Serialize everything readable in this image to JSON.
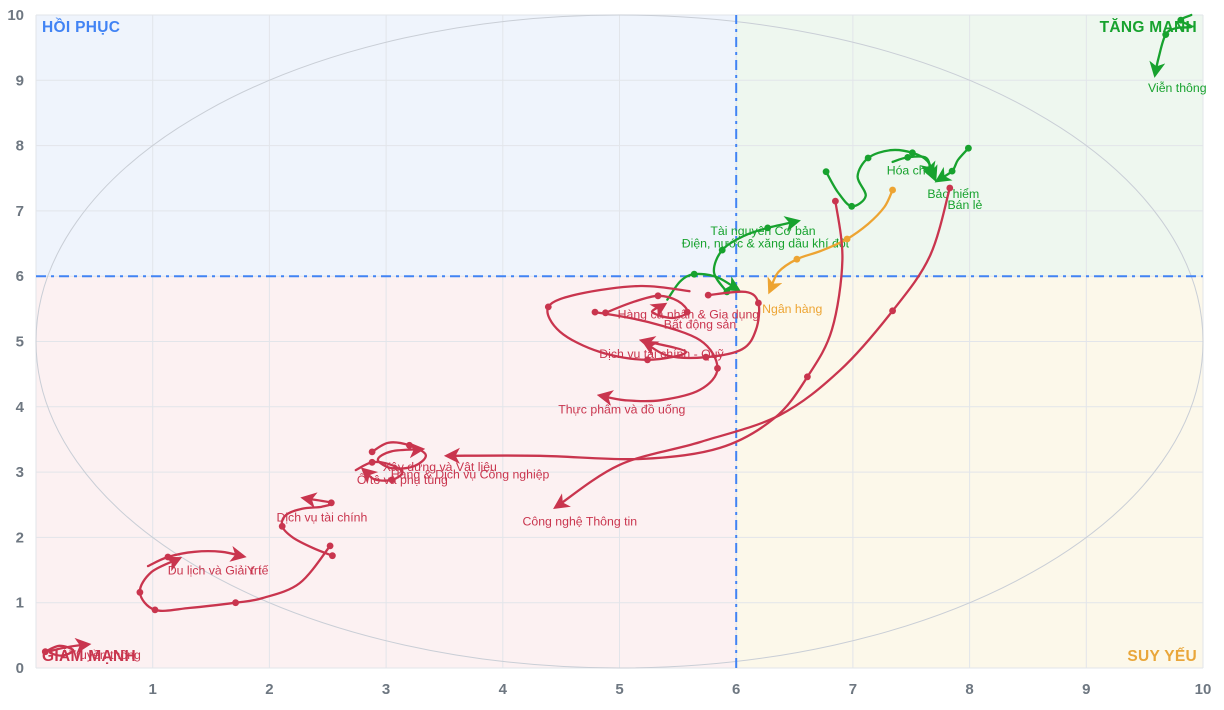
{
  "page": {
    "background": "#ffffff"
  },
  "colors": {
    "grid": "#e2e5ea",
    "axis_text": "#6e7781",
    "ellipse": "#c9ced6",
    "crosshair_blue": "#4183f4",
    "green": "#17a22e",
    "red": "#c9354e",
    "orange": "#eda432",
    "blue": "#4183f4"
  },
  "chart_data": {
    "type": "scatter",
    "subtype": "relative-rotation-graph",
    "title": "",
    "xlabel": "",
    "ylabel": "",
    "xlim": [
      0,
      10
    ],
    "ylim": [
      0,
      10
    ],
    "x_ticks": [
      1,
      2,
      3,
      4,
      5,
      6,
      7,
      8,
      9,
      10
    ],
    "y_ticks": [
      0,
      1,
      2,
      3,
      4,
      5,
      6,
      7,
      8,
      9,
      10
    ],
    "grid": true,
    "crosshair": {
      "x": 6,
      "y": 6,
      "color": "#4183f4"
    },
    "boundary_circle": {
      "cx": 5,
      "cy": 5,
      "r": 5,
      "color": "#c9ced6"
    },
    "quadrants": {
      "top_left": {
        "label": "HỒI PHỤC",
        "text_color": "#4183f4",
        "bg": "#eff4fc"
      },
      "top_right": {
        "label": "TĂNG MẠNH",
        "text_color": "#17a22e",
        "bg": "#eef7ef"
      },
      "bottom_left": {
        "label": "GIẢM MẠNH",
        "text_color": "#c9354e",
        "bg": "#fcf1f2"
      },
      "bottom_right": {
        "label": "SUY YẾU",
        "text_color": "#e9a63a",
        "bg": "#fcf8ea"
      }
    },
    "series": [
      {
        "name": "Viễn thông",
        "color": "#17a22e",
        "points": [
          [
            9.9,
            10.0
          ],
          [
            9.81,
            9.92
          ],
          [
            9.9,
            9.82
          ],
          [
            9.77,
            9.8
          ],
          [
            9.68,
            9.7
          ],
          [
            9.62,
            9.35
          ],
          [
            9.59,
            9.1
          ]
        ],
        "dots": [
          1,
          4
        ],
        "label_pos": [
          9.78,
          8.82
        ]
      },
      {
        "name": "Hóa chất",
        "color": "#17a22e",
        "points": [
          [
            6.77,
            7.6
          ],
          [
            6.87,
            7.29
          ],
          [
            6.99,
            7.07
          ],
          [
            7.11,
            7.23
          ],
          [
            7.04,
            7.53
          ],
          [
            7.13,
            7.81
          ],
          [
            7.32,
            7.93
          ],
          [
            7.51,
            7.89
          ],
          [
            7.64,
            7.76
          ],
          [
            7.7,
            7.5
          ]
        ],
        "dots": [
          0,
          2,
          5,
          7
        ],
        "label_pos": [
          7.5,
          7.56
        ]
      },
      {
        "name": "Bảo hiểm",
        "color": "#17a22e",
        "points": [
          [
            7.99,
            7.96
          ],
          [
            7.9,
            7.78
          ],
          [
            7.85,
            7.61
          ],
          [
            7.73,
            7.47
          ]
        ],
        "dots": [
          0,
          2
        ],
        "label_pos": [
          7.86,
          7.2
        ]
      },
      {
        "name": "Bán lẻ",
        "color": "#17a22e",
        "points": [
          [
            7.34,
            7.75
          ],
          [
            7.47,
            7.82
          ],
          [
            7.63,
            7.81
          ],
          [
            7.67,
            7.56
          ]
        ],
        "dots": [
          1
        ],
        "label_pos": [
          7.96,
          7.03
        ]
      },
      {
        "name": "Tài nguyên Cơ bản",
        "color": "#17a22e",
        "points": [
          [
            5.92,
            5.76
          ],
          [
            5.81,
            6.06
          ],
          [
            5.88,
            6.4
          ],
          [
            6.07,
            6.62
          ],
          [
            6.27,
            6.74
          ],
          [
            6.52,
            6.84
          ]
        ],
        "dots": [
          0,
          2,
          4
        ],
        "label_pos": [
          6.23,
          6.63
        ]
      },
      {
        "name": "Điện, nước & xăng dầu khí đốt",
        "color": "#17a22e",
        "points": [
          [
            5.41,
            5.64
          ],
          [
            5.52,
            5.92
          ],
          [
            5.64,
            6.03
          ],
          [
            5.83,
            5.99
          ],
          [
            6.01,
            5.8
          ]
        ],
        "dots": [
          2
        ],
        "label_pos": [
          6.25,
          6.44
        ]
      },
      {
        "name": "Ngân hàng",
        "color": "#eda432",
        "points": [
          [
            7.34,
            7.32
          ],
          [
            7.27,
            7.06
          ],
          [
            7.13,
            6.8
          ],
          [
            6.95,
            6.57
          ],
          [
            6.73,
            6.39
          ],
          [
            6.52,
            6.26
          ],
          [
            6.36,
            6.06
          ],
          [
            6.29,
            5.78
          ]
        ],
        "dots": [
          0,
          3,
          5
        ],
        "label_pos": [
          6.48,
          5.44
        ]
      },
      {
        "name": "Hàng cá nhân & Gia dụng",
        "color": "#c9354e",
        "points": [
          [
            4.88,
            5.44
          ],
          [
            5.11,
            5.6
          ],
          [
            5.33,
            5.7
          ],
          [
            5.5,
            5.62
          ],
          [
            5.58,
            5.45
          ],
          [
            5.45,
            5.36
          ],
          [
            5.28,
            5.45
          ],
          [
            5.38,
            5.56
          ]
        ],
        "dots": [
          0,
          2,
          4
        ],
        "label_pos": [
          5.59,
          5.35
        ]
      },
      {
        "name": "Bất động sản",
        "color": "#c9354e",
        "points": [
          [
            5.76,
            5.71
          ],
          [
            6.08,
            5.76
          ],
          [
            6.19,
            5.59
          ],
          [
            6.17,
            5.18
          ],
          [
            6.05,
            4.88
          ],
          [
            5.74,
            4.76
          ],
          [
            5.42,
            4.78
          ],
          [
            5.22,
            4.98
          ]
        ],
        "dots": [
          0,
          2,
          5
        ],
        "label_pos": [
          5.69,
          5.2
        ]
      },
      {
        "name": "Dịch vụ tài chính - Quỹ",
        "color": "#c9354e",
        "points": [
          [
            5.6,
            5.77
          ],
          [
            5.18,
            5.85
          ],
          [
            4.66,
            5.73
          ],
          [
            4.39,
            5.53
          ],
          [
            4.49,
            5.15
          ],
          [
            4.83,
            4.84
          ],
          [
            5.24,
            4.72
          ],
          [
            5.57,
            4.84
          ],
          [
            5.2,
            5.01
          ]
        ],
        "dots": [
          3,
          6
        ],
        "label_pos": [
          5.36,
          4.75
        ]
      },
      {
        "name": "Thực phẩm và đồ uống",
        "color": "#c9354e",
        "points": [
          [
            4.79,
            5.45
          ],
          [
            5.24,
            5.3
          ],
          [
            5.69,
            5.02
          ],
          [
            5.84,
            4.59
          ],
          [
            5.69,
            4.26
          ],
          [
            5.35,
            4.1
          ],
          [
            5.05,
            4.1
          ],
          [
            4.84,
            4.17
          ]
        ],
        "dots": [
          0,
          3
        ],
        "label_pos": [
          5.02,
          3.9
        ]
      },
      {
        "name": "Công nghệ Thông tin",
        "color": "#c9354e",
        "points": [
          [
            7.83,
            7.35
          ],
          [
            7.66,
            6.31
          ],
          [
            7.34,
            5.47
          ],
          [
            6.89,
            4.56
          ],
          [
            6.37,
            3.87
          ],
          [
            5.69,
            3.46
          ],
          [
            5.0,
            3.11
          ],
          [
            4.46,
            2.47
          ]
        ],
        "dots": [
          0,
          2
        ],
        "label_pos": [
          4.66,
          2.18
        ]
      },
      {
        "name": "Hàng & Dịch vụ Công nghiệp",
        "color": "#c9354e",
        "points": [
          [
            6.85,
            7.15
          ],
          [
            6.91,
            6.25
          ],
          [
            6.82,
            5.18
          ],
          [
            6.61,
            4.46
          ],
          [
            6.33,
            3.83
          ],
          [
            5.86,
            3.37
          ],
          [
            5.18,
            3.2
          ],
          [
            4.32,
            3.25
          ],
          [
            3.53,
            3.25
          ]
        ],
        "dots": [
          0,
          3
        ],
        "label_pos": [
          3.72,
          2.9
        ]
      },
      {
        "name": "Xây dựng và Vật liệu",
        "color": "#c9354e",
        "points": [
          [
            2.88,
            3.31
          ],
          [
            3.02,
            3.45
          ],
          [
            3.2,
            3.41
          ],
          [
            3.34,
            3.26
          ],
          [
            3.24,
            3.09
          ],
          [
            3.05,
            3.06
          ],
          [
            2.93,
            3.19
          ],
          [
            3.05,
            3.32
          ],
          [
            3.3,
            3.35
          ]
        ],
        "dots": [
          0,
          2
        ],
        "label_pos": [
          3.46,
          3.02
        ]
      },
      {
        "name": "Ô tô và phụ tùng",
        "color": "#c9354e",
        "points": [
          [
            2.74,
            3.03
          ],
          [
            2.88,
            3.15
          ],
          [
            3.03,
            3.12
          ],
          [
            3.14,
            3.0
          ],
          [
            3.05,
            2.88
          ],
          [
            2.9,
            2.89
          ],
          [
            2.81,
            3.03
          ]
        ],
        "dots": [
          1,
          4
        ],
        "label_pos": [
          3.14,
          2.82
        ]
      },
      {
        "name": "Dịch vụ tài chính",
        "color": "#c9354e",
        "points": [
          [
            2.54,
            1.72
          ],
          [
            2.37,
            1.84
          ],
          [
            2.2,
            2.0
          ],
          [
            2.11,
            2.17
          ],
          [
            2.14,
            2.34
          ],
          [
            2.28,
            2.44
          ],
          [
            2.45,
            2.47
          ],
          [
            2.53,
            2.53
          ],
          [
            2.3,
            2.6
          ]
        ],
        "dots": [
          0,
          3,
          7
        ],
        "label_pos": [
          2.45,
          2.24
        ]
      },
      {
        "name": "Du lịch và Giải trí",
        "color": "#c9354e",
        "points": [
          [
            2.52,
            1.87
          ],
          [
            2.26,
            1.3
          ],
          [
            1.94,
            1.07
          ],
          [
            1.71,
            1.0
          ],
          [
            1.32,
            0.92
          ],
          [
            1.02,
            0.89
          ],
          [
            0.89,
            1.16
          ],
          [
            0.99,
            1.47
          ],
          [
            1.22,
            1.67
          ]
        ],
        "dots": [
          0,
          3,
          5,
          6
        ],
        "label_pos": [
          1.53,
          1.43
        ]
      },
      {
        "name": "Y tế",
        "color": "#c9354e",
        "points": [
          [
            0.96,
            1.56
          ],
          [
            1.13,
            1.7
          ],
          [
            1.36,
            1.78
          ],
          [
            1.59,
            1.78
          ],
          [
            1.77,
            1.71
          ]
        ],
        "dots": [
          1
        ],
        "label_pos": [
          1.9,
          1.43
        ]
      },
      {
        "name": "Truyền thông",
        "color": "#c9354e",
        "points": [
          [
            0.08,
            0.25
          ],
          [
            0.2,
            0.34
          ],
          [
            0.32,
            0.27
          ],
          [
            0.22,
            0.19
          ],
          [
            0.12,
            0.25
          ],
          [
            0.3,
            0.33
          ],
          [
            0.44,
            0.36
          ]
        ],
        "dots": [
          0
        ],
        "label_pos": [
          0.59,
          0.14
        ]
      }
    ]
  }
}
